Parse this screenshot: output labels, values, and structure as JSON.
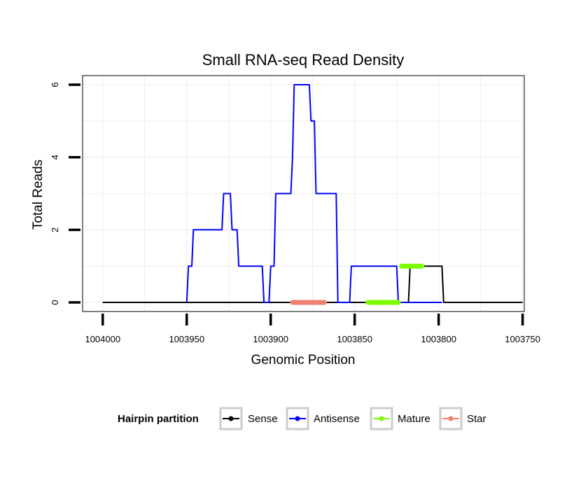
{
  "chart_data": {
    "type": "line",
    "title": "Small RNA-seq Read Density",
    "xlabel": "Genomic Position",
    "ylabel": "Total Reads",
    "xlim": [
      1004012,
      1003749
    ],
    "ylim": [
      -0.25,
      6.25
    ],
    "x_reversed": true,
    "x_ticks": [
      1004000,
      1003950,
      1003900,
      1003850,
      1003800,
      1003750
    ],
    "y_ticks": [
      0,
      2,
      4,
      6
    ],
    "grid": true,
    "legend": {
      "title": "Hairpin partition",
      "placement": "bottom",
      "entries": [
        {
          "name": "Sense",
          "color": "#000000"
        },
        {
          "name": "Antisense",
          "color": "#0000ff"
        },
        {
          "name": "Mature",
          "color": "#7cfc00"
        },
        {
          "name": "Star",
          "color": "#f08070"
        }
      ]
    },
    "series": [
      {
        "name": "Sense",
        "color": "#000000",
        "points": [
          [
            1004000,
            0
          ],
          [
            1003818,
            0
          ],
          [
            1003817,
            1
          ],
          [
            1003798,
            1
          ],
          [
            1003797,
            0
          ],
          [
            1003750,
            0
          ]
        ]
      },
      {
        "name": "Antisense",
        "color": "#0000ff",
        "points": [
          [
            1003950,
            0
          ],
          [
            1003949,
            1
          ],
          [
            1003947,
            1
          ],
          [
            1003946,
            2
          ],
          [
            1003929,
            2
          ],
          [
            1003928,
            3
          ],
          [
            1003924,
            3
          ],
          [
            1003923,
            2
          ],
          [
            1003920,
            2
          ],
          [
            1003919,
            1
          ],
          [
            1003905,
            1
          ],
          [
            1003904,
            0
          ],
          [
            1003901,
            0
          ],
          [
            1003900,
            1
          ],
          [
            1003898,
            1
          ],
          [
            1003897,
            3
          ],
          [
            1003888,
            3
          ],
          [
            1003887,
            4
          ],
          [
            1003886,
            6
          ],
          [
            1003877,
            6
          ],
          [
            1003876,
            5
          ],
          [
            1003874,
            5
          ],
          [
            1003873,
            3
          ],
          [
            1003861,
            3
          ],
          [
            1003860,
            0
          ],
          [
            1003853,
            0
          ],
          [
            1003852,
            1
          ],
          [
            1003825,
            1
          ],
          [
            1003824,
            0
          ],
          [
            1003798,
            0
          ]
        ]
      }
    ],
    "segments": [
      {
        "name": "Star",
        "color": "#f08070",
        "x_start": 1003887,
        "x_end": 1003868,
        "y": 0
      },
      {
        "name": "Mature",
        "color": "#7cfc00",
        "x_start": 1003842,
        "x_end": 1003824,
        "y": 0
      },
      {
        "name": "Mature",
        "color": "#7cfc00",
        "x_start": 1003822,
        "x_end": 1003810,
        "y": 1
      }
    ]
  }
}
